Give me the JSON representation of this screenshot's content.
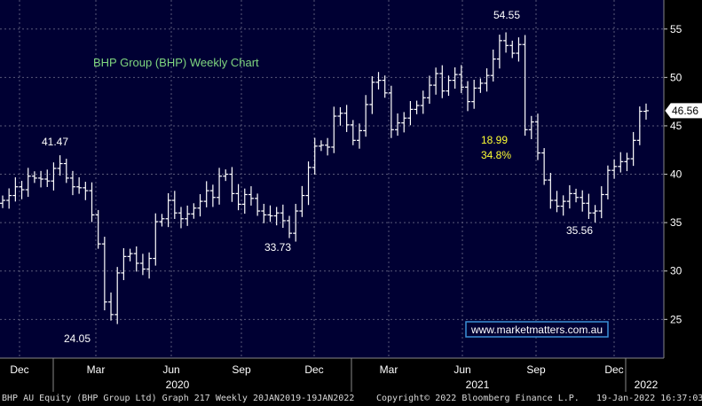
{
  "chart_data": {
    "type": "bar",
    "subtype": "ohlc-weekly",
    "title": "BHP Group (BHP) Weekly Chart",
    "xlabel": "",
    "ylabel": "",
    "ylim": [
      21,
      58
    ],
    "y_ticks": [
      25,
      30,
      35,
      40,
      45,
      50,
      55
    ],
    "x_tick_labels": [
      "Dec",
      "Mar",
      "Jun",
      "Sep",
      "Dec",
      "Mar",
      "Jun",
      "Sep",
      "Dec"
    ],
    "year_labels": [
      "2020",
      "2021",
      "2022"
    ],
    "grid": true,
    "colors": {
      "background": "#000033",
      "grid": "#5a5a7a",
      "bars": "#ffffff",
      "title": "#7fd67f",
      "annotation_yellow": "#ffff33",
      "link_text": "#ffffff",
      "link_border": "#3a8fd6"
    },
    "last_price": "46.56",
    "annotations": {
      "high_2020_start": "41.47",
      "low_2020": "24.05",
      "low_sep_2020": "33.73",
      "high_2021": "54.55",
      "drop_amount": "18.99",
      "drop_pct": "34.8%",
      "low_late_2021": "35.56"
    },
    "watermark": "www.marketmatters.com.au",
    "series": [
      {
        "values": [
          37.3,
          37.8,
          38.7,
          38.4,
          39.8,
          39.6,
          39.5,
          39.3,
          40.6,
          41.1,
          39.6,
          38.7,
          38.6,
          38.3,
          35.8,
          32.8,
          26.8,
          25.5,
          29.8,
          31.5,
          31.8,
          30.8,
          30.2,
          31.3,
          35.1,
          35.4,
          37.3,
          36.0,
          35.4,
          35.9,
          36.5,
          37.2,
          38.3,
          37.6,
          39.8,
          40.0,
          38.0,
          36.9,
          37.9,
          37.5,
          36.2,
          35.8,
          35.7,
          36.0,
          35.2,
          33.9,
          36.2,
          37.8,
          40.7,
          42.9,
          43.0,
          42.8,
          46.0,
          46.3,
          45.1,
          43.5,
          44.5,
          47.2,
          49.5,
          49.7,
          48.4,
          44.6,
          45.3,
          45.8,
          46.7,
          47.1,
          47.9,
          49.2,
          50.4,
          48.6,
          49.7,
          50.3,
          49.0,
          47.5,
          48.9,
          49.4,
          50.2,
          51.9,
          53.8,
          53.3,
          52.5,
          53.4,
          44.6,
          45.4,
          42.2,
          39.4,
          37.3,
          36.7,
          37.2,
          38.0,
          37.6,
          37.0,
          36.0,
          36.2,
          37.9,
          40.4,
          40.8,
          41.3,
          41.6,
          43.5,
          46.5,
          46.56
        ]
      }
    ]
  },
  "footer": {
    "left": "BHP AU Equity (BHP Group Ltd) Graph 217  Weekly 20JAN2019-19JAN2022",
    "center": "Copyright© 2022 Bloomberg Finance L.P.",
    "right": "19-Jan-2022 16:37:03"
  }
}
